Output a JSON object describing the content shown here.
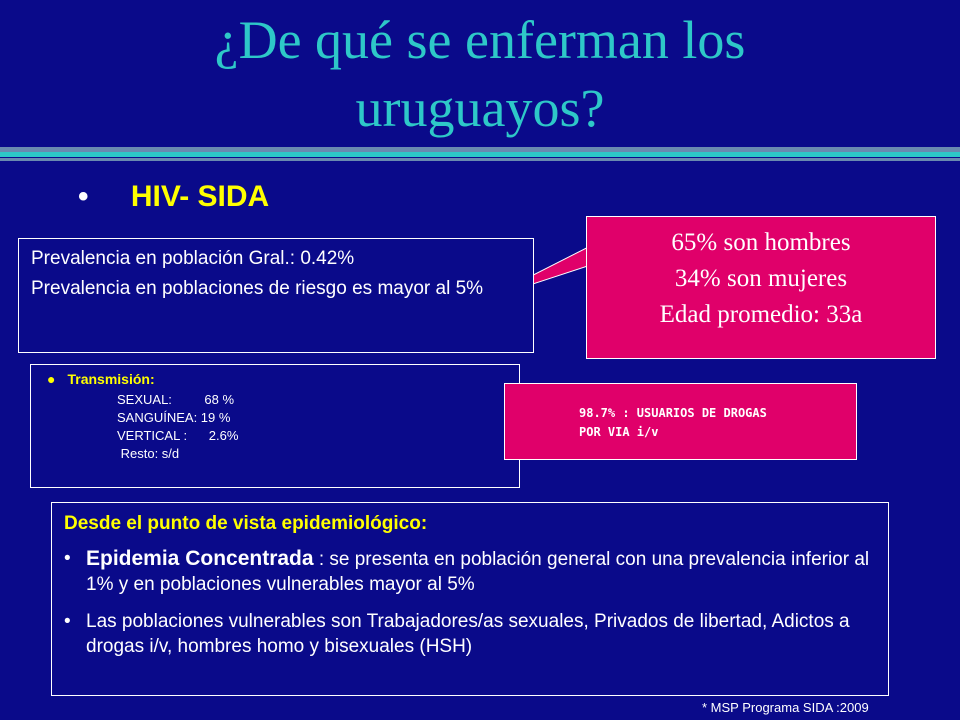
{
  "title": {
    "line1": "¿De qué se enferman los",
    "line2": "uruguayos?"
  },
  "main_bullet": "HIV- SIDA",
  "prevalence_box": {
    "line1": "Prevalencia en población Gral.: 0.42%",
    "line2": "Prevalencia en poblaciones de riesgo es mayor al 5%"
  },
  "callout_demographics": {
    "line1": "65% son hombres",
    "line2": "34% son mujeres",
    "line3": "Edad promedio:  33a"
  },
  "transmission_box": {
    "heading": "Transmisión:",
    "rows": [
      "SEXUAL:         68 %",
      "SANGUÍNEA: 19 %",
      "VERTICAL :      2.6%",
      " Resto: s/d"
    ]
  },
  "callout_drugs": {
    "line1": "98.7%  :  USUARIOS DE DROGAS",
    "line2": "POR VIA i/v"
  },
  "epidemiology_box": {
    "heading": "Desde el punto de vista epidemiológico:",
    "item1_strong": "Epidemia Concentrada",
    "item1_text": " : se presenta en población general con una prevalencia inferior al 1% y en poblaciones vulnerables mayor al 5%",
    "item2_text": "Las poblaciones vulnerables son Trabajadores/as sexuales, Privados de libertad, Adictos a drogas i/v, hombres homo y bisexuales (HSH)"
  },
  "footnote": "* MSP Programa SIDA :2009",
  "colors": {
    "background": "#0a0a8a",
    "title": "#2ec8c8",
    "accent_yellow": "#ffff00",
    "callout_pink": "#e0006a"
  }
}
